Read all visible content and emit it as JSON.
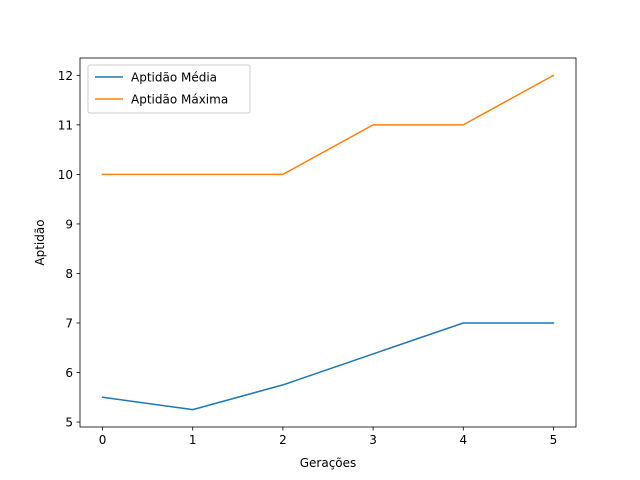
{
  "chart_data": {
    "type": "line",
    "title": "",
    "xlabel": "Gerações",
    "ylabel": "Aptidão",
    "x": [
      0,
      1,
      2,
      3,
      4,
      5
    ],
    "xlim": [
      -0.25,
      5.25
    ],
    "ylim": [
      4.9,
      12.35
    ],
    "xticks": [
      0,
      1,
      2,
      3,
      4,
      5
    ],
    "yticks": [
      5,
      6,
      7,
      8,
      9,
      10,
      11,
      12
    ],
    "grid": false,
    "legend_position": "top-left",
    "series": [
      {
        "name": "Aptidão Média",
        "color": "#1f77b4",
        "values": [
          5.5,
          5.25,
          5.75,
          6.375,
          7.0,
          7.0
        ]
      },
      {
        "name": "Aptidão Máxima",
        "color": "#ff7f0e",
        "values": [
          10,
          10,
          10,
          11,
          11,
          12
        ]
      }
    ]
  }
}
